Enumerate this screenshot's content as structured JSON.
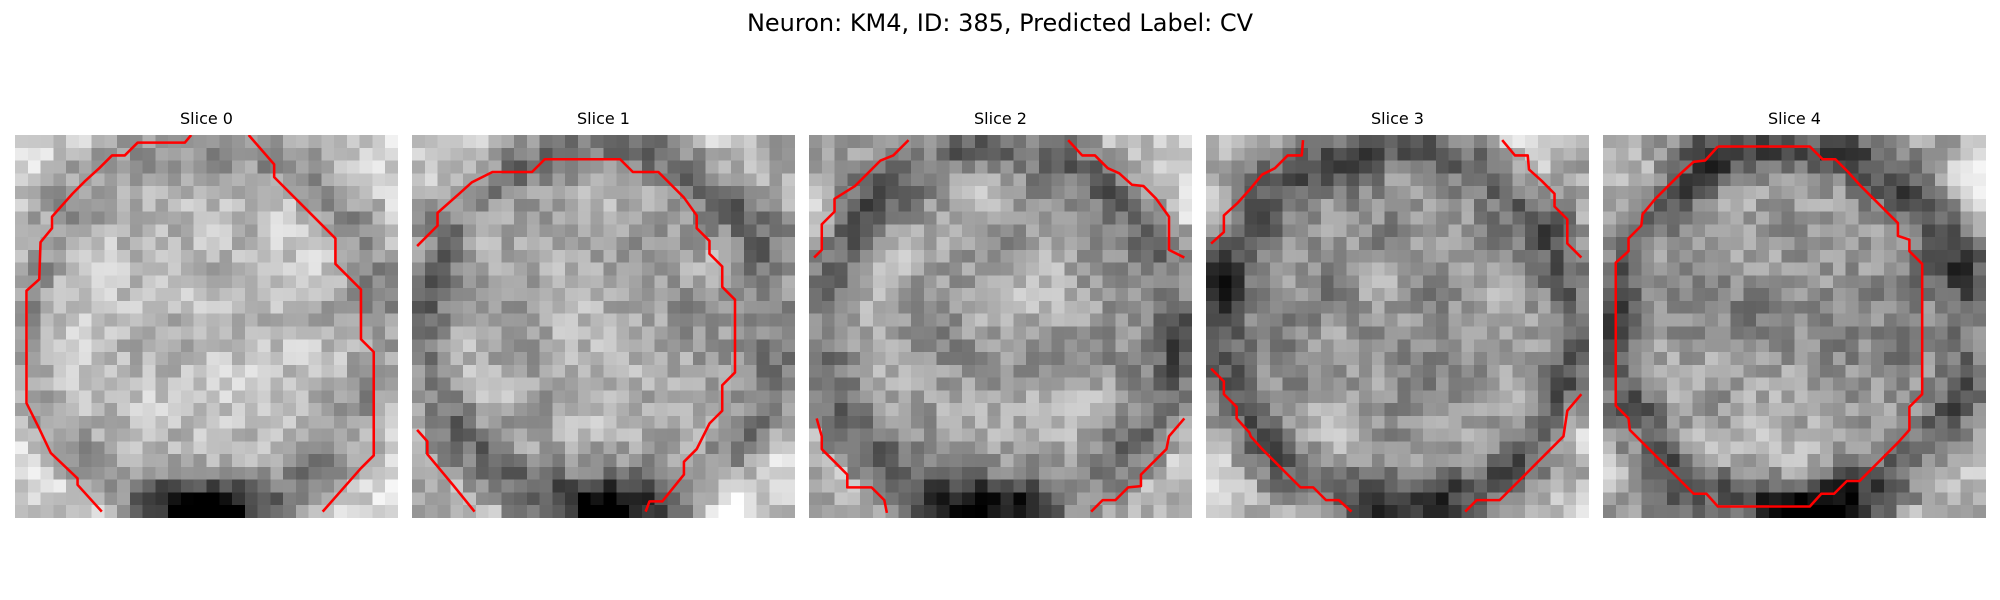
{
  "figure": {
    "title": "Neuron: KM4, ID: 385, Predicted Label: CV"
  },
  "panels": [
    {
      "title": "Slice 0",
      "seed": 11,
      "brightness": 0.72,
      "contrast": 0.22,
      "dark_bottom": 0.9
    },
    {
      "title": "Slice 1",
      "seed": 23,
      "brightness": 0.66,
      "contrast": 0.3,
      "dark_bottom": 0.7
    },
    {
      "title": "Slice 2",
      "seed": 37,
      "brightness": 0.62,
      "contrast": 0.32,
      "dark_bottom": 0.6
    },
    {
      "title": "Slice 3",
      "seed": 51,
      "brightness": 0.58,
      "contrast": 0.34,
      "dark_bottom": 0.4
    },
    {
      "title": "Slice 4",
      "seed": 67,
      "brightness": 0.6,
      "contrast": 0.4,
      "dark_bottom": 0.3
    }
  ],
  "colors": {
    "contour": "#ff0000"
  }
}
